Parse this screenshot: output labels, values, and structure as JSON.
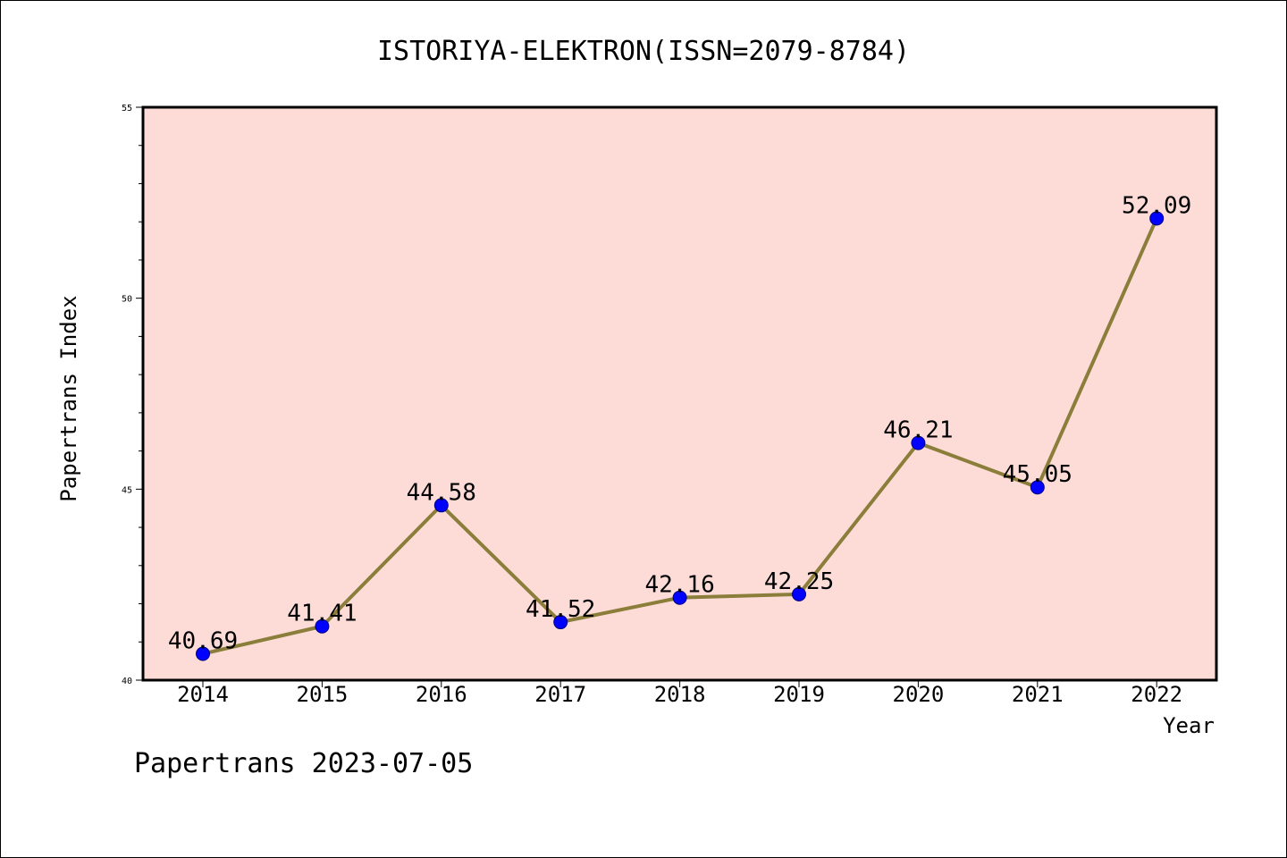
{
  "colors": {
    "plot_background": "#fddcd8",
    "line": "#8b7d3a",
    "marker": "#0000ff",
    "axis": "#000000"
  },
  "footer": "Papertrans 2023-07-05",
  "chart_data": {
    "type": "line",
    "title": "ISTORIYA-ELEKTRON(ISSN=2079-8784)",
    "xlabel": "Year",
    "ylabel": "Papertrans Index",
    "categories": [
      "2014",
      "2015",
      "2016",
      "2017",
      "2018",
      "2019",
      "2020",
      "2021",
      "2022"
    ],
    "series": [
      {
        "values": [
          40.69,
          41.41,
          44.58,
          41.52,
          42.16,
          42.25,
          46.21,
          45.05,
          52.09
        ],
        "data_labels": [
          "40.69",
          "41.41",
          "44.58",
          "41.52",
          "42.16",
          "42.25",
          "46.21",
          "45.05",
          "52.09"
        ]
      }
    ],
    "ylim": [
      40,
      55
    ],
    "yticks": [
      "40",
      "45",
      "50",
      "55"
    ],
    "grid": false,
    "legend": "none"
  }
}
